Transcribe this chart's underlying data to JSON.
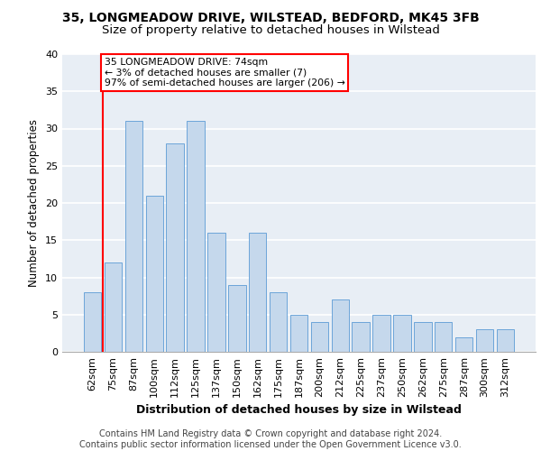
{
  "title1": "35, LONGMEADOW DRIVE, WILSTEAD, BEDFORD, MK45 3FB",
  "title2": "Size of property relative to detached houses in Wilstead",
  "xlabel": "Distribution of detached houses by size in Wilstead",
  "ylabel": "Number of detached properties",
  "categories": [
    "62sqm",
    "75sqm",
    "87sqm",
    "100sqm",
    "112sqm",
    "125sqm",
    "137sqm",
    "150sqm",
    "162sqm",
    "175sqm",
    "187sqm",
    "200sqm",
    "212sqm",
    "225sqm",
    "237sqm",
    "250sqm",
    "262sqm",
    "275sqm",
    "287sqm",
    "300sqm",
    "312sqm"
  ],
  "values": [
    8,
    12,
    31,
    21,
    28,
    31,
    16,
    9,
    16,
    8,
    5,
    4,
    7,
    4,
    5,
    5,
    4,
    4,
    2,
    3,
    3
  ],
  "bar_color": "#c5d8ec",
  "bar_edge_color": "#5b9bd5",
  "annotation_box_text": "35 LONGMEADOW DRIVE: 74sqm\n← 3% of detached houses are smaller (7)\n97% of semi-detached houses are larger (206) →",
  "annotation_box_color": "white",
  "annotation_box_edge_color": "red",
  "vline_color": "red",
  "ylim": [
    0,
    40
  ],
  "yticks": [
    0,
    5,
    10,
    15,
    20,
    25,
    30,
    35,
    40
  ],
  "footer_text": "Contains HM Land Registry data © Crown copyright and database right 2024.\nContains public sector information licensed under the Open Government Licence v3.0.",
  "background_color": "#e8eef5",
  "grid_color": "white",
  "title1_fontsize": 10,
  "title2_fontsize": 9.5,
  "xlabel_fontsize": 9,
  "ylabel_fontsize": 8.5,
  "tick_fontsize": 8,
  "footer_fontsize": 7
}
